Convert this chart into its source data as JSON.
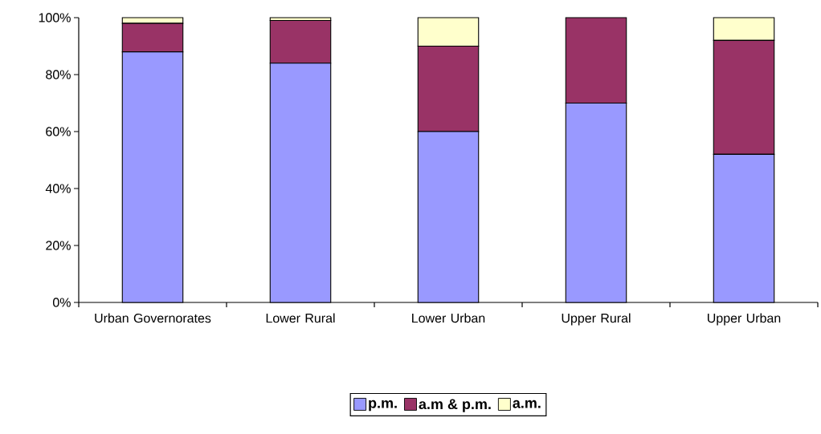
{
  "chart_data": {
    "type": "bar",
    "stacked": true,
    "categories": [
      "Urban Governorates",
      "Lower Rural",
      "Lower Urban",
      "Upper Rural",
      "Upper Urban"
    ],
    "series": [
      {
        "name": "p.m.",
        "color": "#9999ff",
        "values": [
          88,
          84,
          60,
          70,
          52
        ]
      },
      {
        "name": "a.m & p.m.",
        "color": "#993366",
        "values": [
          10,
          15,
          30,
          30,
          40
        ]
      },
      {
        "name": "a.m.",
        "color": "#ffffcc",
        "values": [
          2,
          1,
          10,
          0,
          8
        ]
      }
    ],
    "ylim": [
      0,
      100
    ],
    "yticks": [
      {
        "value": 0,
        "label": "0%"
      },
      {
        "value": 20,
        "label": "20%"
      },
      {
        "value": 40,
        "label": "40%"
      },
      {
        "value": 60,
        "label": "60%"
      },
      {
        "value": 80,
        "label": "80%"
      },
      {
        "value": 100,
        "label": "100%"
      }
    ],
    "grid": false,
    "legend": "bottom"
  }
}
